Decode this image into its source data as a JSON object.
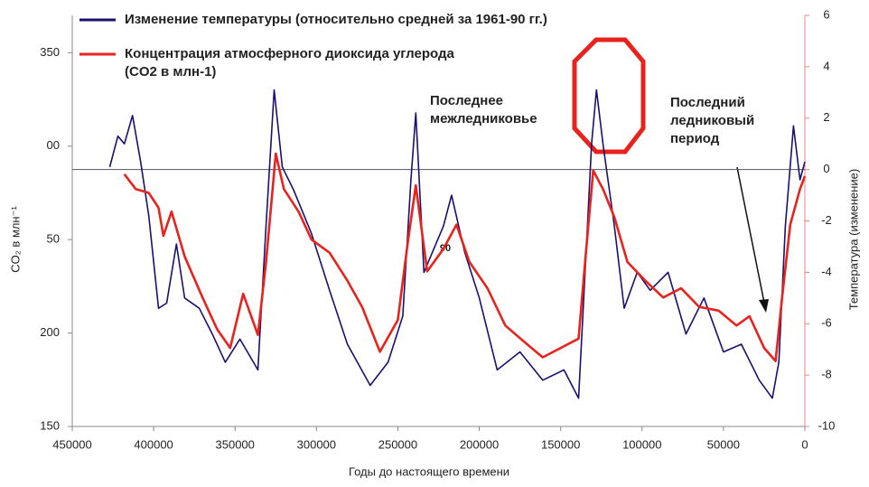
{
  "chart_data": {
    "type": "line",
    "xlabel": "Годы до настоящего времени",
    "ylabel": "CO₂ в млн⁻¹",
    "y2label": "Температура (изменение)",
    "xlim": [
      450000,
      0
    ],
    "xticks": [
      450000,
      400000,
      350000,
      300000,
      250000,
      200000,
      150000,
      100000,
      50000,
      0
    ],
    "ylim": [
      150,
      370
    ],
    "yticks": [
      150,
      200,
      {
        "value": 250,
        "label": "50"
      },
      {
        "value": 300,
        "label": "00"
      },
      350
    ],
    "y2lim": [
      -10,
      6
    ],
    "y2ticks": [
      -10,
      -8,
      -6,
      -4,
      -2,
      0,
      2,
      4,
      6
    ],
    "hline": 0,
    "series": [
      {
        "name": "Изменение температуры (относительно средней за 1961-90 гг.)",
        "color": "#1a1070",
        "axis": "y2",
        "x": [
          427000,
          422000,
          418000,
          413000,
          408000,
          403000,
          397000,
          392000,
          386000,
          381000,
          372000,
          364000,
          356000,
          347000,
          336000,
          331000,
          326000,
          321000,
          314000,
          303000,
          292000,
          281000,
          267000,
          256000,
          247000,
          242000,
          239000,
          234000,
          222000,
          217000,
          209000,
          200000,
          189000,
          175000,
          161000,
          148000,
          139000,
          135000,
          131000,
          128000,
          124000,
          117000,
          111000,
          103000,
          95000,
          84000,
          73000,
          62000,
          50000,
          39000,
          28000,
          20000,
          16000,
          12000,
          7000,
          3000,
          0
        ],
        "values": [
          0.1,
          1.3,
          1.0,
          2.1,
          0.3,
          -1.8,
          -5.4,
          -5.2,
          -2.9,
          -5.0,
          -5.4,
          -6.4,
          -7.5,
          -6.6,
          -7.8,
          -2.2,
          3.1,
          0.1,
          -0.8,
          -2.5,
          -4.7,
          -6.8,
          -8.4,
          -7.5,
          -5.7,
          -0.4,
          2.2,
          -4.0,
          -2.2,
          -1.0,
          -3.2,
          -5.0,
          -7.8,
          -7.1,
          -8.2,
          -7.8,
          -8.9,
          -4.0,
          1.0,
          3.1,
          1.0,
          -2.2,
          -5.4,
          -4.0,
          -4.7,
          -4.0,
          -6.4,
          -5.0,
          -7.1,
          -6.8,
          -8.2,
          -8.9,
          -7.5,
          -2.2,
          1.7,
          -0.4,
          0.3
        ]
      },
      {
        "name": "Концентрация атмосферного диоксида углерода  (CO2 в млн-1)",
        "color": "#e8231d",
        "axis": "y",
        "x": [
          418000,
          411000,
          403000,
          397000,
          394000,
          389000,
          381000,
          370000,
          361000,
          353000,
          345000,
          336000,
          331000,
          325000,
          320000,
          311000,
          303000,
          292000,
          281000,
          272000,
          261000,
          250000,
          244000,
          239000,
          232000,
          222000,
          214000,
          206000,
          195000,
          184000,
          172000,
          161000,
          150000,
          139000,
          135000,
          130000,
          124000,
          117000,
          109000,
          98000,
          87000,
          76000,
          65000,
          53000,
          42000,
          34000,
          25000,
          18000,
          14000,
          9000,
          3000,
          0
        ],
        "values": [
          285,
          277,
          275,
          267,
          252,
          265,
          241,
          219,
          202,
          192,
          221,
          199,
          238,
          296,
          277,
          265,
          250,
          243,
          228,
          214,
          190,
          207,
          248,
          279,
          233,
          245,
          258,
          238,
          224,
          204,
          195,
          187,
          192,
          197,
          238,
          287,
          277,
          262,
          238,
          228,
          219,
          224,
          214,
          212,
          204,
          209,
          192,
          185,
          219,
          258,
          277,
          284
        ]
      }
    ],
    "annotations": [
      "Последнее межледниковье",
      "Последний ледниковый период",
      "90"
    ]
  }
}
